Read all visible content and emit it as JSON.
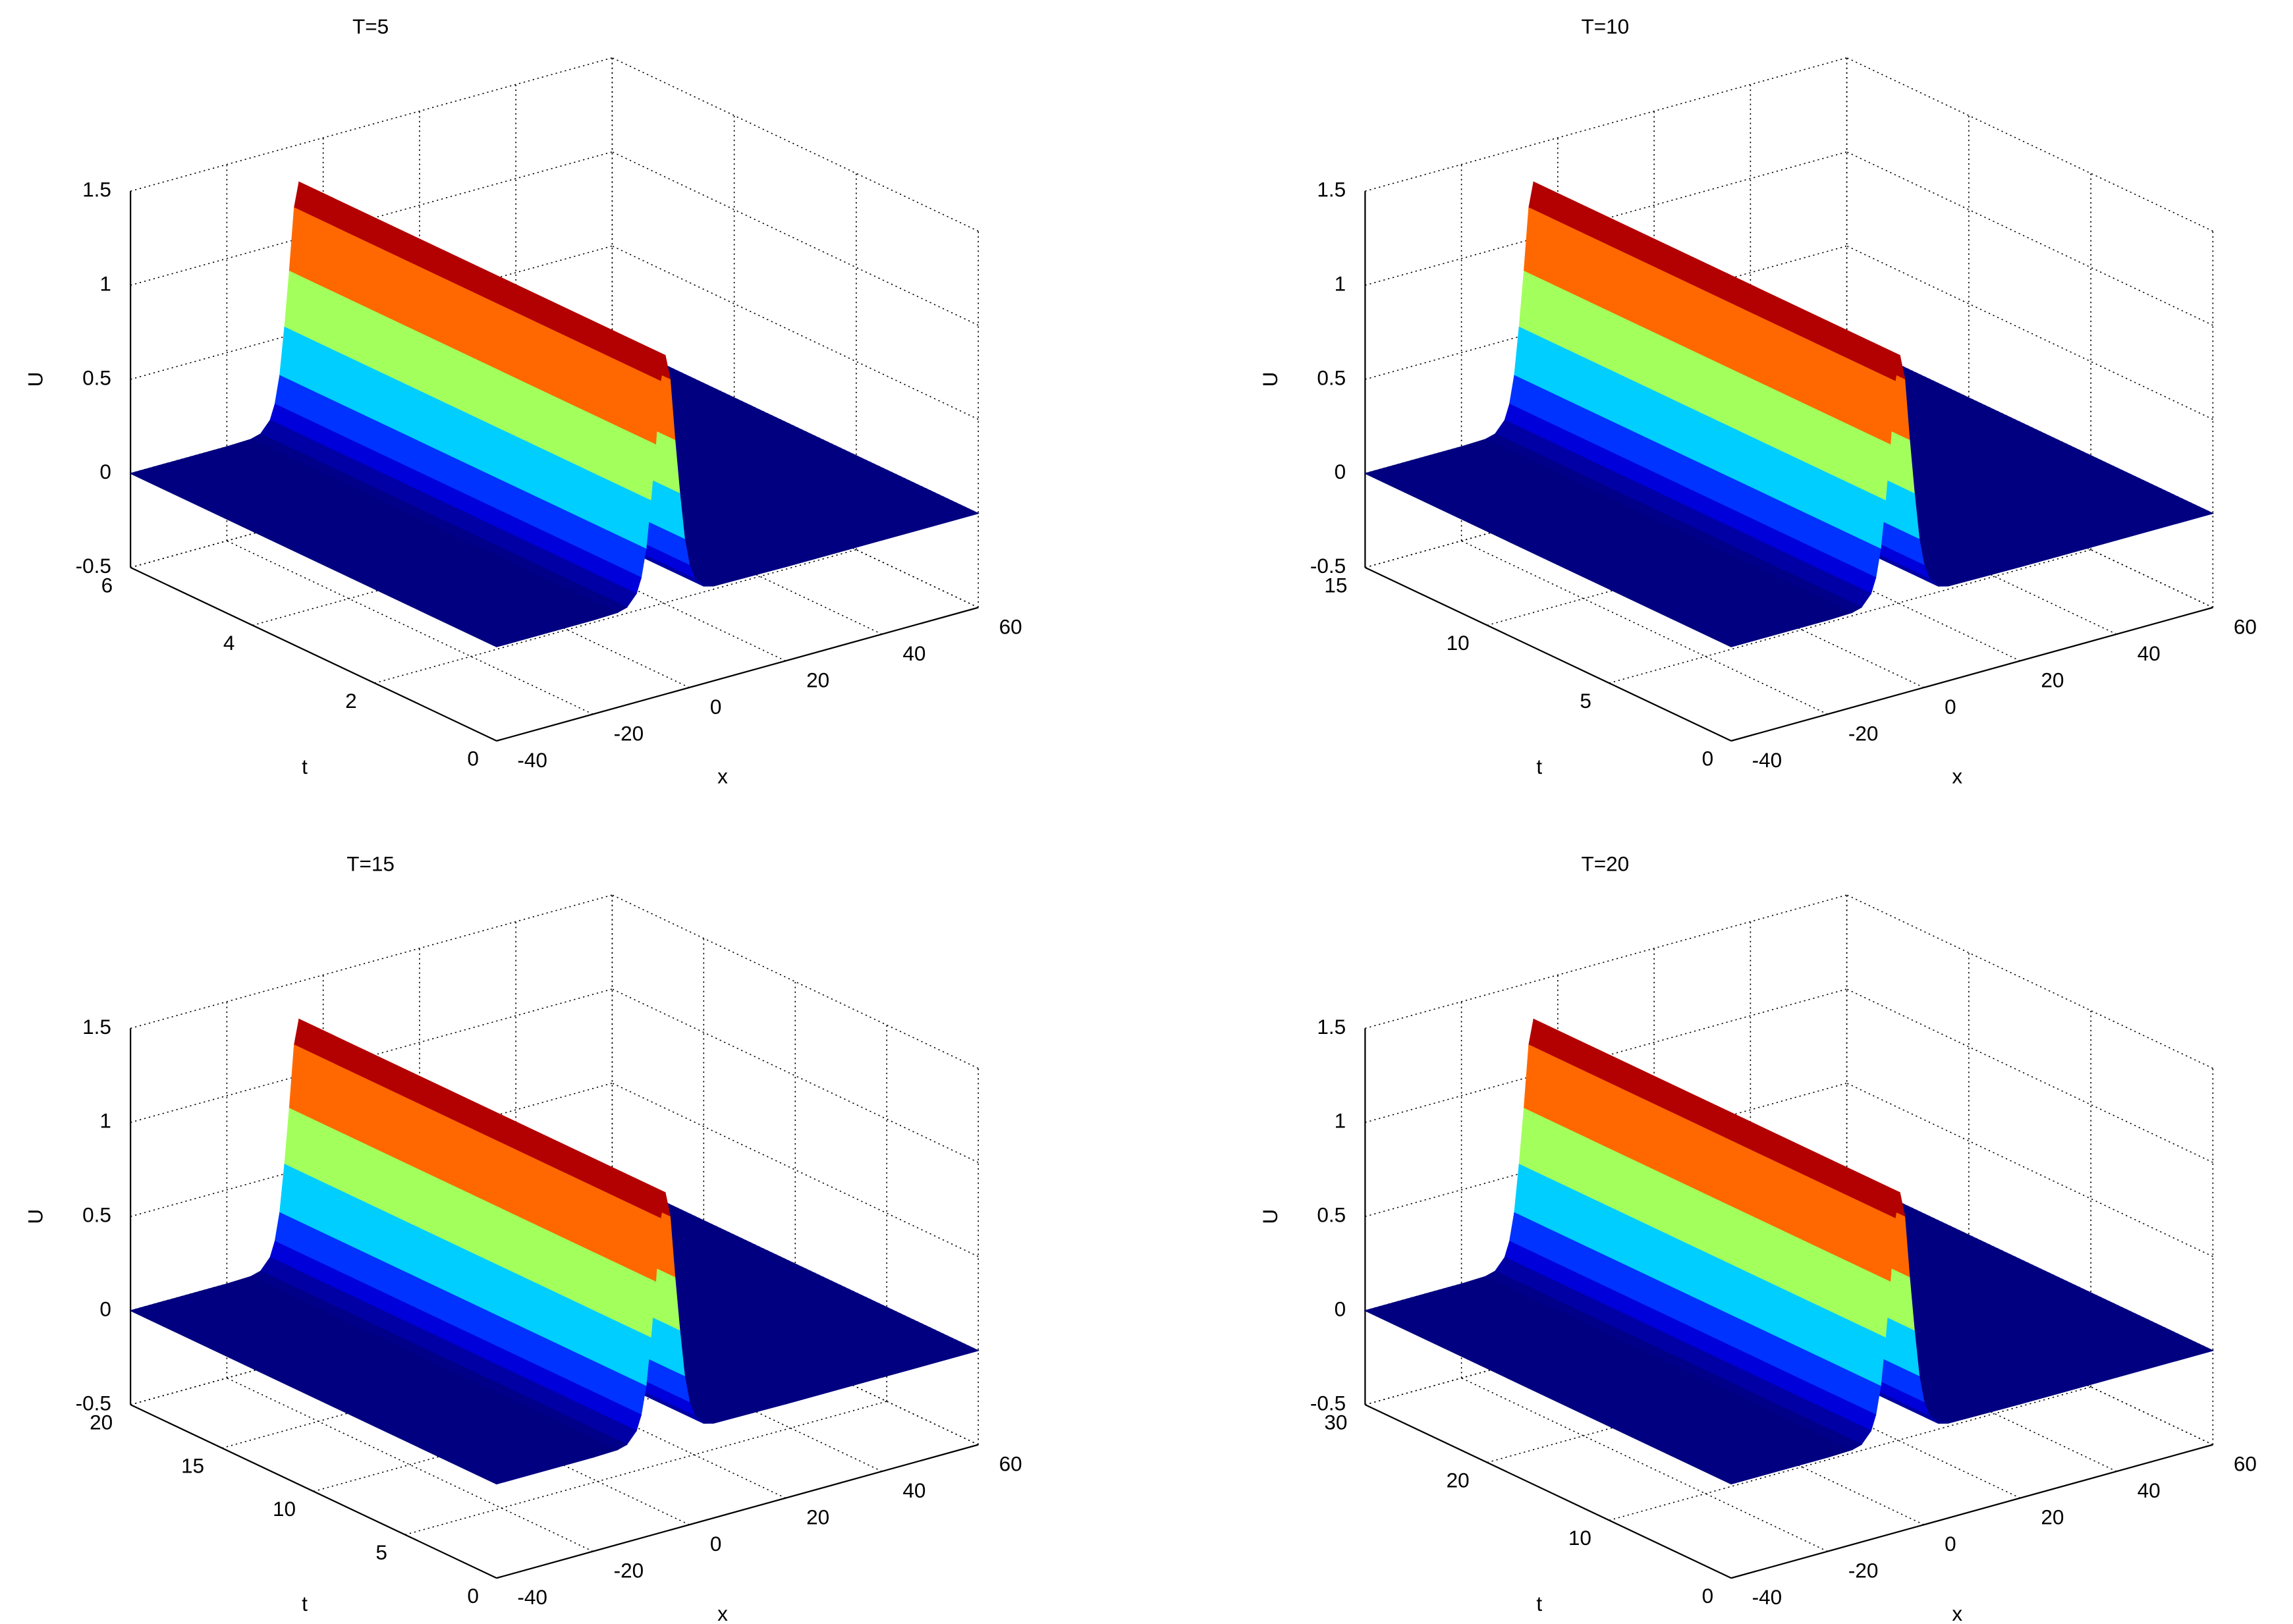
{
  "chart_data": [
    {
      "type": "surface",
      "title": "T=5",
      "xlabel": "x",
      "ylabel": "t",
      "zlabel": "U",
      "colormap": "jet",
      "grid": true,
      "x": [
        -40,
        -20,
        -15,
        -13,
        -11,
        -10,
        -9,
        -8,
        -7,
        -6,
        -5,
        -4,
        -3,
        -2,
        -1,
        0,
        1,
        3,
        5,
        20,
        40,
        60
      ],
      "values": [
        0,
        0,
        0.004,
        0.018,
        0.077,
        0.155,
        0.3,
        0.55,
        0.84,
        1.17,
        1.3,
        1.17,
        0.84,
        0.55,
        0.3,
        0.155,
        0.077,
        0.018,
        0.004,
        0,
        0,
        0
      ],
      "xlim": [
        -40,
        60
      ],
      "xticks": [
        -40,
        -20,
        0,
        20,
        40,
        60
      ],
      "ylim": [
        0,
        6
      ],
      "yticks": [
        0,
        2,
        4,
        6
      ],
      "zlim": [
        -0.5,
        1.5
      ],
      "zticks": [
        -0.5,
        0,
        0.5,
        1,
        1.5
      ]
    },
    {
      "type": "surface",
      "title": "T=10",
      "xlabel": "x",
      "ylabel": "t",
      "zlabel": "U",
      "colormap": "jet",
      "grid": true,
      "x": [
        -40,
        -20,
        -15,
        -13,
        -11,
        -10,
        -9,
        -8,
        -7,
        -6,
        -5,
        -4,
        -3,
        -2,
        -1,
        0,
        1,
        3,
        5,
        20,
        40,
        60
      ],
      "values": [
        0,
        0,
        0.004,
        0.018,
        0.077,
        0.155,
        0.3,
        0.55,
        0.84,
        1.17,
        1.3,
        1.17,
        0.84,
        0.55,
        0.3,
        0.155,
        0.077,
        0.018,
        0.004,
        0,
        0,
        0
      ],
      "xlim": [
        -40,
        60
      ],
      "xticks": [
        -40,
        -20,
        0,
        20,
        40,
        60
      ],
      "ylim": [
        0,
        15
      ],
      "yticks": [
        0,
        5,
        10,
        15
      ],
      "zlim": [
        -0.5,
        1.5
      ],
      "zticks": [
        -0.5,
        0,
        0.5,
        1,
        1.5
      ]
    },
    {
      "type": "surface",
      "title": "T=15",
      "xlabel": "x",
      "ylabel": "t",
      "zlabel": "U",
      "colormap": "jet",
      "grid": true,
      "x": [
        -40,
        -20,
        -15,
        -13,
        -11,
        -10,
        -9,
        -8,
        -7,
        -6,
        -5,
        -4,
        -3,
        -2,
        -1,
        0,
        1,
        3,
        5,
        20,
        40,
        60
      ],
      "values": [
        0,
        0,
        0.004,
        0.018,
        0.077,
        0.155,
        0.3,
        0.55,
        0.84,
        1.17,
        1.3,
        1.17,
        0.84,
        0.55,
        0.3,
        0.155,
        0.077,
        0.018,
        0.004,
        0,
        0,
        0
      ],
      "xlim": [
        -40,
        60
      ],
      "xticks": [
        -40,
        -20,
        0,
        20,
        40,
        60
      ],
      "ylim": [
        0,
        20
      ],
      "yticks": [
        0,
        5,
        10,
        15,
        20
      ],
      "zlim": [
        -0.5,
        1.5
      ],
      "zticks": [
        -0.5,
        0,
        0.5,
        1,
        1.5
      ]
    },
    {
      "type": "surface",
      "title": "T=20",
      "xlabel": "x",
      "ylabel": "t",
      "zlabel": "U",
      "colormap": "jet",
      "grid": true,
      "x": [
        -40,
        -20,
        -15,
        -13,
        -11,
        -10,
        -9,
        -8,
        -7,
        -6,
        -5,
        -4,
        -3,
        -2,
        -1,
        0,
        1,
        3,
        5,
        20,
        40,
        60
      ],
      "values": [
        0,
        0,
        0.004,
        0.018,
        0.077,
        0.155,
        0.3,
        0.55,
        0.84,
        1.17,
        1.3,
        1.17,
        0.84,
        0.55,
        0.3,
        0.155,
        0.077,
        0.018,
        0.004,
        0,
        0,
        0
      ],
      "xlim": [
        -40,
        60
      ],
      "xticks": [
        -40,
        -20,
        0,
        20,
        40,
        60
      ],
      "ylim": [
        0,
        30
      ],
      "yticks": [
        0,
        10,
        20,
        30
      ],
      "zlim": [
        -0.5,
        1.5
      ],
      "zticks": [
        -0.5,
        0,
        0.5,
        1,
        1.5
      ]
    }
  ]
}
